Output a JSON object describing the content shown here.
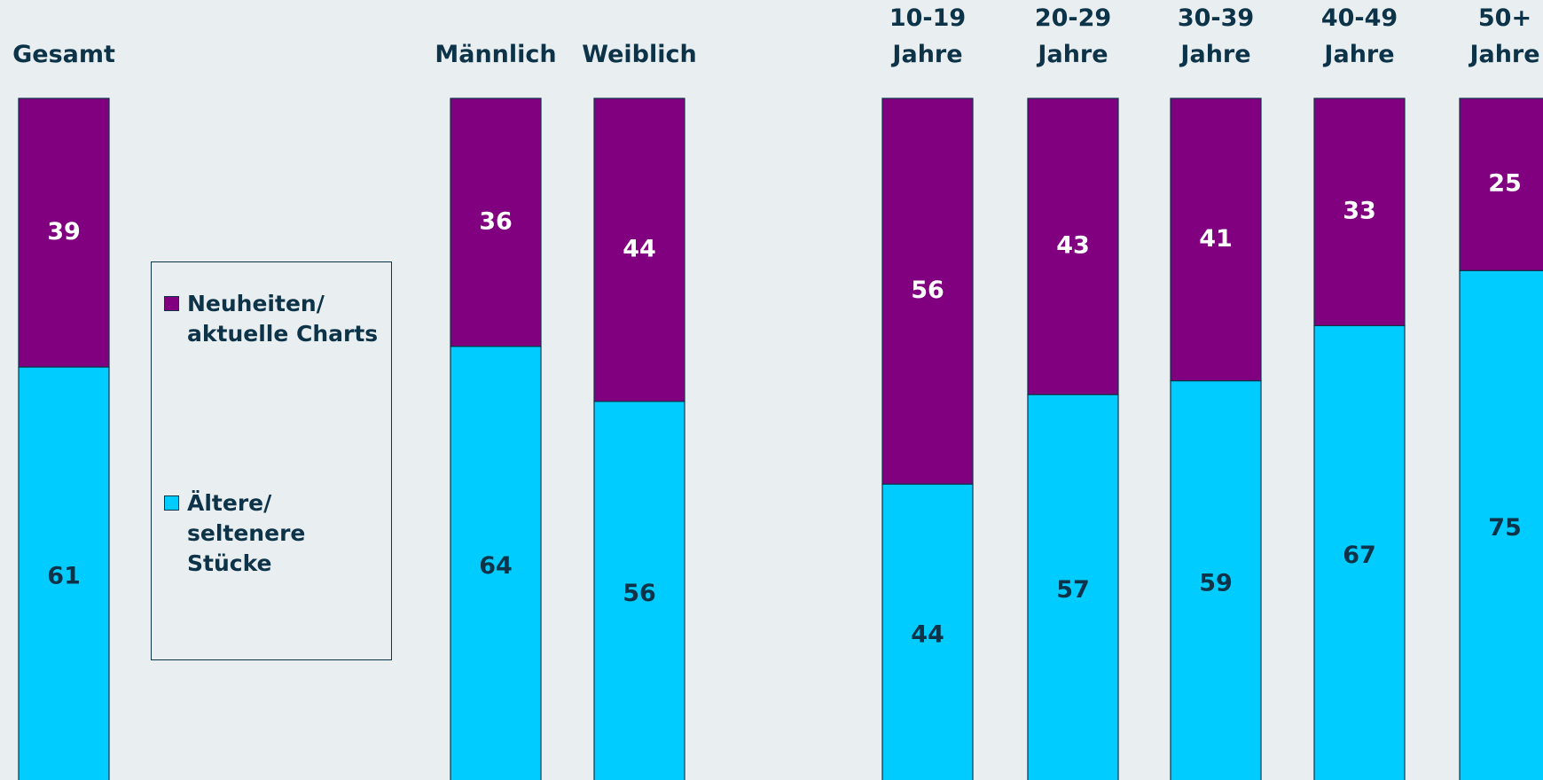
{
  "chart_data": {
    "type": "stacked_bar",
    "categories": [
      "Gesamt",
      "Männlich",
      "Weiblich",
      "10-19\nJahre",
      "20-29\nJahre",
      "30-39\nJahre",
      "40-49\nJahre",
      "50+\nJahre"
    ],
    "series": [
      {
        "name": "Neuheiten/\naktuelle Charts",
        "color": "#800080",
        "values": [
          39,
          36,
          44,
          56,
          43,
          41,
          33,
          25
        ]
      },
      {
        "name": "Ältere/\nseltenere\nStücke",
        "color": "#00ccff",
        "values": [
          61,
          64,
          56,
          44,
          57,
          59,
          67,
          75
        ]
      }
    ],
    "ylim": [
      0,
      100
    ]
  }
}
